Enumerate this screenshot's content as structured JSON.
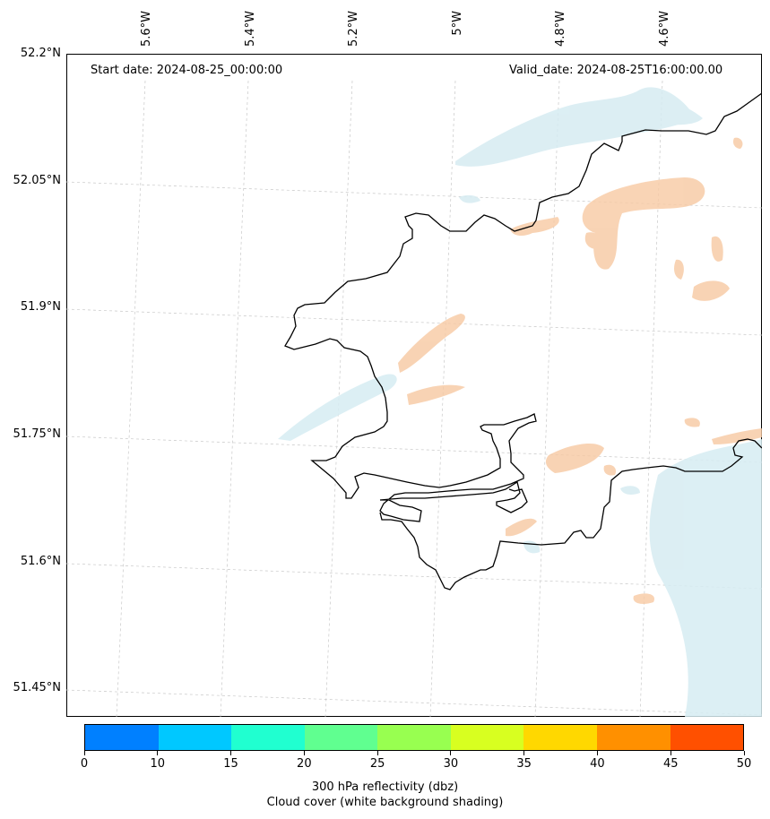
{
  "annotations": {
    "start_date": "Start date: 2024-08-25_00:00:00",
    "valid_date": "Valid_date: 2024-08-25T16:00:00.00"
  },
  "longitude_labels": [
    "5.6°W",
    "5.4°W",
    "5.2°W",
    "5°W",
    "4.8°W",
    "4.6°W"
  ],
  "latitude_labels": [
    "52.2°N",
    "52.05°N",
    "51.9°N",
    "51.75°N",
    "51.6°N",
    "51.45°N"
  ],
  "colorbar": {
    "ticks": [
      "0",
      "10",
      "15",
      "20",
      "25",
      "30",
      "35",
      "40",
      "45",
      "50"
    ],
    "colors": [
      "#0080ff",
      "#00c8ff",
      "#20ffd0",
      "#60ff90",
      "#98ff50",
      "#d8ff20",
      "#ffd800",
      "#ff9000",
      "#ff5000"
    ],
    "title_line1": "300 hPa reflectivity (dbz)",
    "title_line2": "Cloud cover (white background shading)"
  },
  "map_colors": {
    "coastline": "#000000",
    "cloud_shading": "#d6ecf2",
    "reflectivity_shading": "#f7c9a2",
    "gridline": "#c8c8c8"
  }
}
